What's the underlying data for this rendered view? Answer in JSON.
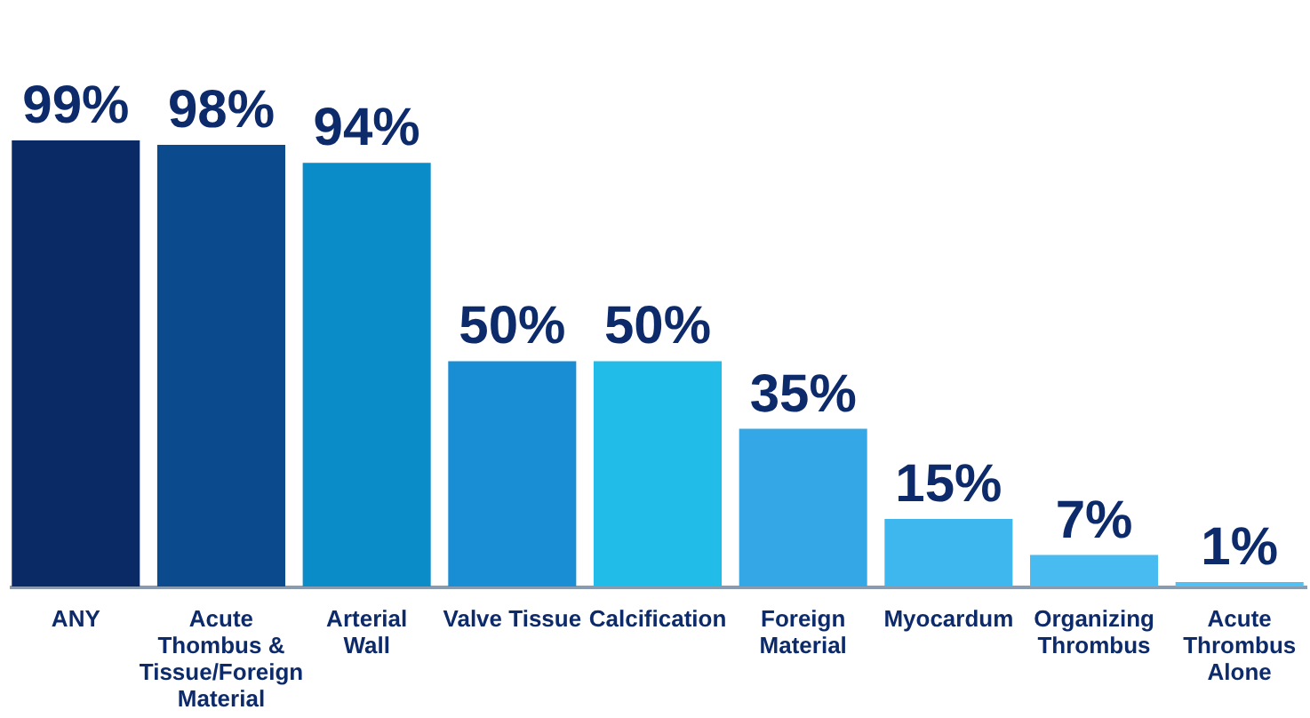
{
  "chart_data": {
    "type": "bar",
    "categories": [
      "ANY",
      "Acute Thombus & Tissue/Foreign Material",
      "Arterial Wall",
      "Valve Tissue",
      "Calcification",
      "Foreign Material",
      "Myocardum",
      "Organizing Thrombus",
      "Acute Thrombus Alone"
    ],
    "values": [
      99,
      98,
      94,
      50,
      50,
      35,
      15,
      7,
      1
    ],
    "value_labels": [
      "99%",
      "98%",
      "94%",
      "50%",
      "50%",
      "35%",
      "15%",
      "7%",
      "1%"
    ],
    "colors": [
      "#0a2a66",
      "#0b4a8c",
      "#0a8cc8",
      "#1a8ed4",
      "#22bce8",
      "#34a8e6",
      "#3eb6ee",
      "#48bcf0",
      "#52c0f2"
    ],
    "grid": false
  }
}
